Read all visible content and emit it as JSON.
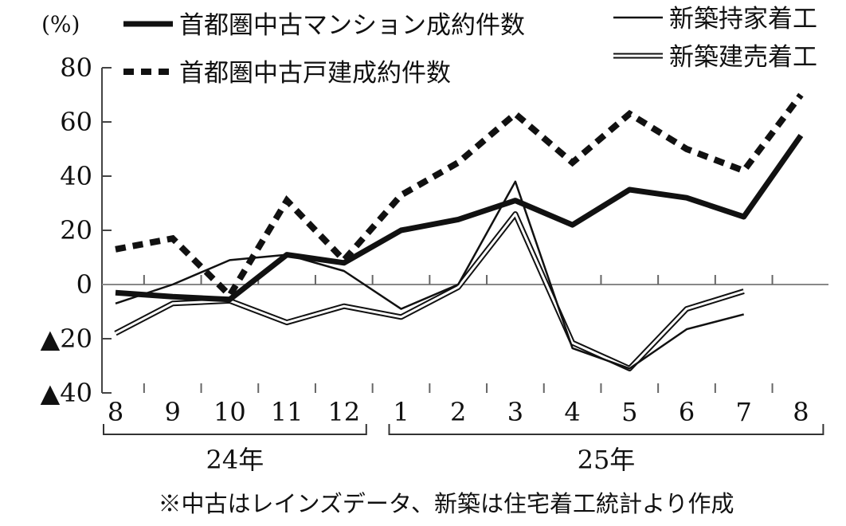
{
  "chart_data": {
    "type": "line",
    "unit_label": "(%)",
    "categories": [
      "8",
      "9",
      "10",
      "11",
      "12",
      "1",
      "2",
      "3",
      "4",
      "5",
      "6",
      "7",
      "8"
    ],
    "year_groups": [
      {
        "label": "24年",
        "from": 0,
        "to": 4
      },
      {
        "label": "25年",
        "from": 5,
        "to": 12
      }
    ],
    "ylim": [
      -40,
      80
    ],
    "yticks": [
      {
        "value": 80,
        "label": "80"
      },
      {
        "value": 60,
        "label": "60"
      },
      {
        "value": 40,
        "label": "40"
      },
      {
        "value": 20,
        "label": "20"
      },
      {
        "value": 0,
        "label": "0"
      },
      {
        "value": -20,
        "label": "▲20"
      },
      {
        "value": -40,
        "label": "▲40"
      }
    ],
    "grid": false,
    "legend_placement": "top",
    "series": [
      {
        "name": "首都圏中古マンション成約件数",
        "style": "thick-solid",
        "color": "#111111",
        "values": [
          -3,
          -4.5,
          -5.5,
          11,
          8,
          20,
          24,
          31,
          22,
          35,
          32,
          25,
          55
        ]
      },
      {
        "name": "首都圏中古戸建成約件数",
        "style": "thick-dashed",
        "color": "#111111",
        "values": [
          13,
          17,
          -4,
          31,
          9,
          33,
          45,
          63,
          45,
          63,
          50,
          42,
          70
        ]
      },
      {
        "name": "新築持家着工",
        "style": "thin-solid",
        "color": "#111111",
        "values": [
          -7,
          0,
          9,
          11,
          5,
          -9,
          0,
          38,
          -23.5,
          -31,
          -16.5,
          -11,
          null
        ]
      },
      {
        "name": "新築建売着工",
        "style": "double-line",
        "color": "#111111",
        "values": [
          -18,
          -7,
          -6,
          -14,
          -8,
          -12,
          -1,
          26,
          -21.5,
          -31,
          -9,
          -2.5,
          null
        ]
      }
    ],
    "footnote": "※中古はレインズデータ、新築は住宅着工統計より作成"
  }
}
